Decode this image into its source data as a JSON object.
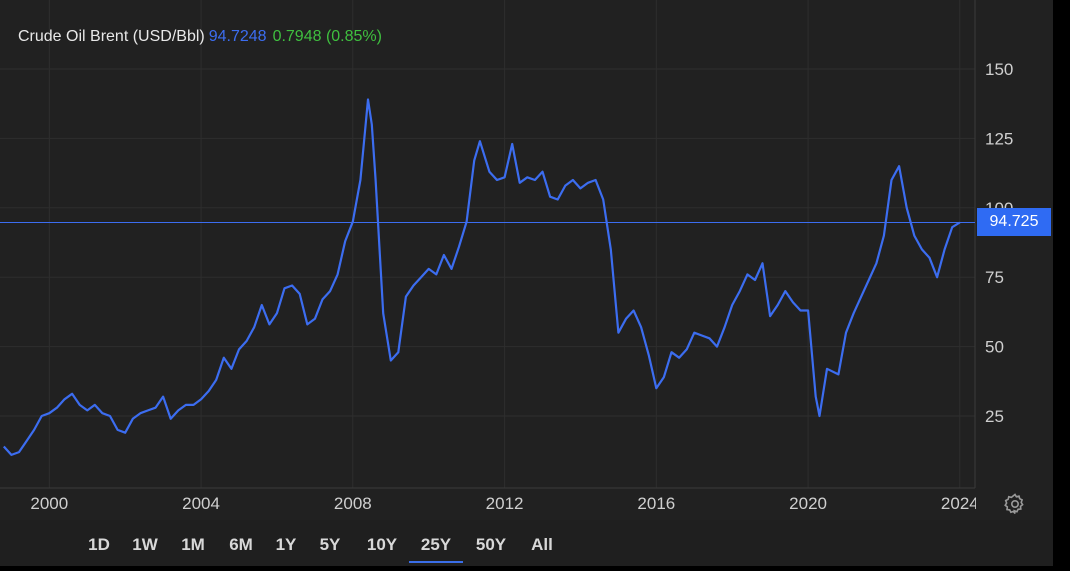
{
  "legend": {
    "name": "Crude Oil Brent (USD/Bbl)",
    "price": "94.7248",
    "change": "0.7948 (0.85%)"
  },
  "price_tag": "94.725",
  "colors": {
    "line": "#3c6df0",
    "price_text": "#3c6df0",
    "change_text": "#3fbf3f",
    "tag_bg": "#2f6bf3",
    "background": "#212121"
  },
  "icons": {
    "settings": "gear-icon"
  },
  "range_buttons": [
    {
      "label": "1D",
      "active": false
    },
    {
      "label": "1W",
      "active": false
    },
    {
      "label": "1M",
      "active": false
    },
    {
      "label": "6M",
      "active": false
    },
    {
      "label": "1Y",
      "active": false
    },
    {
      "label": "5Y",
      "active": false
    },
    {
      "label": "10Y",
      "active": false
    },
    {
      "label": "25Y",
      "active": true
    },
    {
      "label": "50Y",
      "active": false
    },
    {
      "label": "All",
      "active": false
    }
  ],
  "chart_data": {
    "type": "line",
    "title": "Crude Oil Brent (USD/Bbl)",
    "y_tick_labels": [
      "150",
      "125",
      "100",
      "75",
      "50",
      "25"
    ],
    "y_ticks": [
      150,
      125,
      100,
      75,
      50,
      25
    ],
    "x_tick_labels": [
      "2000",
      "2004",
      "2008",
      "2012",
      "2016",
      "2020",
      "2024"
    ],
    "x_ticks": [
      2000,
      2004,
      2008,
      2012,
      2016,
      2020,
      2024
    ],
    "xlim": [
      1998.7,
      2024.4
    ],
    "ylim": [
      5,
      170
    ],
    "grid": true,
    "current_value": 94.725,
    "series": [
      {
        "name": "Crude Oil Brent (USD/Bbl)",
        "x": [
          1998.8,
          1999.0,
          1999.2,
          1999.4,
          1999.6,
          1999.8,
          2000.0,
          2000.2,
          2000.4,
          2000.6,
          2000.8,
          2001.0,
          2001.2,
          2001.4,
          2001.6,
          2001.8,
          2002.0,
          2002.2,
          2002.4,
          2002.6,
          2002.8,
          2003.0,
          2003.2,
          2003.4,
          2003.6,
          2003.8,
          2004.0,
          2004.2,
          2004.4,
          2004.6,
          2004.8,
          2005.0,
          2005.2,
          2005.4,
          2005.6,
          2005.8,
          2006.0,
          2006.2,
          2006.4,
          2006.6,
          2006.8,
          2007.0,
          2007.2,
          2007.4,
          2007.6,
          2007.8,
          2008.0,
          2008.2,
          2008.4,
          2008.5,
          2008.6,
          2008.8,
          2009.0,
          2009.2,
          2009.4,
          2009.6,
          2009.8,
          2010.0,
          2010.2,
          2010.4,
          2010.6,
          2010.8,
          2011.0,
          2011.2,
          2011.35,
          2011.6,
          2011.8,
          2012.0,
          2012.2,
          2012.4,
          2012.6,
          2012.8,
          2013.0,
          2013.2,
          2013.4,
          2013.6,
          2013.8,
          2014.0,
          2014.2,
          2014.4,
          2014.6,
          2014.8,
          2015.0,
          2015.2,
          2015.4,
          2015.6,
          2015.8,
          2016.0,
          2016.2,
          2016.4,
          2016.6,
          2016.8,
          2017.0,
          2017.2,
          2017.4,
          2017.6,
          2017.8,
          2018.0,
          2018.2,
          2018.4,
          2018.6,
          2018.8,
          2019.0,
          2019.2,
          2019.4,
          2019.6,
          2019.8,
          2020.0,
          2020.2,
          2020.3,
          2020.5,
          2020.8,
          2021.0,
          2021.2,
          2021.4,
          2021.6,
          2021.8,
          2022.0,
          2022.2,
          2022.4,
          2022.6,
          2022.8,
          2023.0,
          2023.2,
          2023.4,
          2023.6,
          2023.8,
          2024.0
        ],
        "y": [
          14,
          11,
          12,
          16,
          20,
          25,
          26,
          28,
          31,
          33,
          29,
          27,
          29,
          26,
          25,
          20,
          19,
          24,
          26,
          27,
          28,
          32,
          24,
          27,
          29,
          29,
          31,
          34,
          38,
          46,
          42,
          49,
          52,
          57,
          65,
          58,
          62,
          71,
          72,
          69,
          58,
          60,
          67,
          70,
          76,
          88,
          95,
          110,
          139,
          130,
          110,
          62,
          45,
          48,
          68,
          72,
          75,
          78,
          76,
          83,
          78,
          86,
          95,
          117,
          124,
          113,
          110,
          111,
          123,
          109,
          111,
          110,
          113,
          104,
          103,
          108,
          110,
          107,
          109,
          110,
          103,
          85,
          55,
          60,
          63,
          57,
          47,
          35,
          39,
          48,
          46,
          49,
          55,
          54,
          53,
          50,
          57,
          65,
          70,
          76,
          74,
          80,
          61,
          65,
          70,
          66,
          63,
          63,
          32,
          25,
          42,
          40,
          55,
          62,
          68,
          74,
          80,
          90,
          110,
          115,
          100,
          90,
          85,
          82,
          75,
          85,
          93,
          94.7
        ]
      }
    ]
  }
}
